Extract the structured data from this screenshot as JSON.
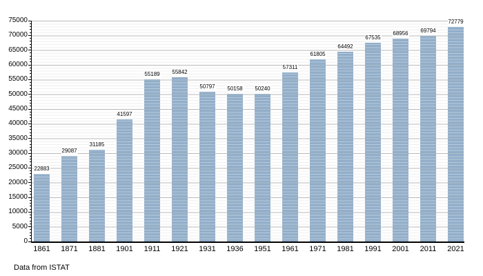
{
  "chart_data": {
    "type": "bar",
    "title": "",
    "xlabel": "",
    "ylabel": "",
    "categories": [
      "1861",
      "1871",
      "1881",
      "1901",
      "1911",
      "1921",
      "1931",
      "1936",
      "1951",
      "1961",
      "1971",
      "1981",
      "1991",
      "2001",
      "2011",
      "2021"
    ],
    "values": [
      22883,
      29087,
      31185,
      41597,
      55189,
      55842,
      50797,
      50158,
      50240,
      57311,
      61805,
      64492,
      67535,
      68956,
      69794,
      72779
    ],
    "ylim": [
      0,
      75000
    ],
    "y_major_step": 5000,
    "y_minor_step": 1000,
    "grid": "on",
    "legend": "none",
    "value_labels_visible": true,
    "footer": "Data from ISTAT"
  },
  "colors": {
    "bar": "#92aec9",
    "major_grid": "#a9a9a9",
    "minor_grid": "#e7e7e7",
    "axis": "#000000",
    "text": "#000000",
    "background": "#ffffff",
    "label_background": "#ffffff"
  }
}
